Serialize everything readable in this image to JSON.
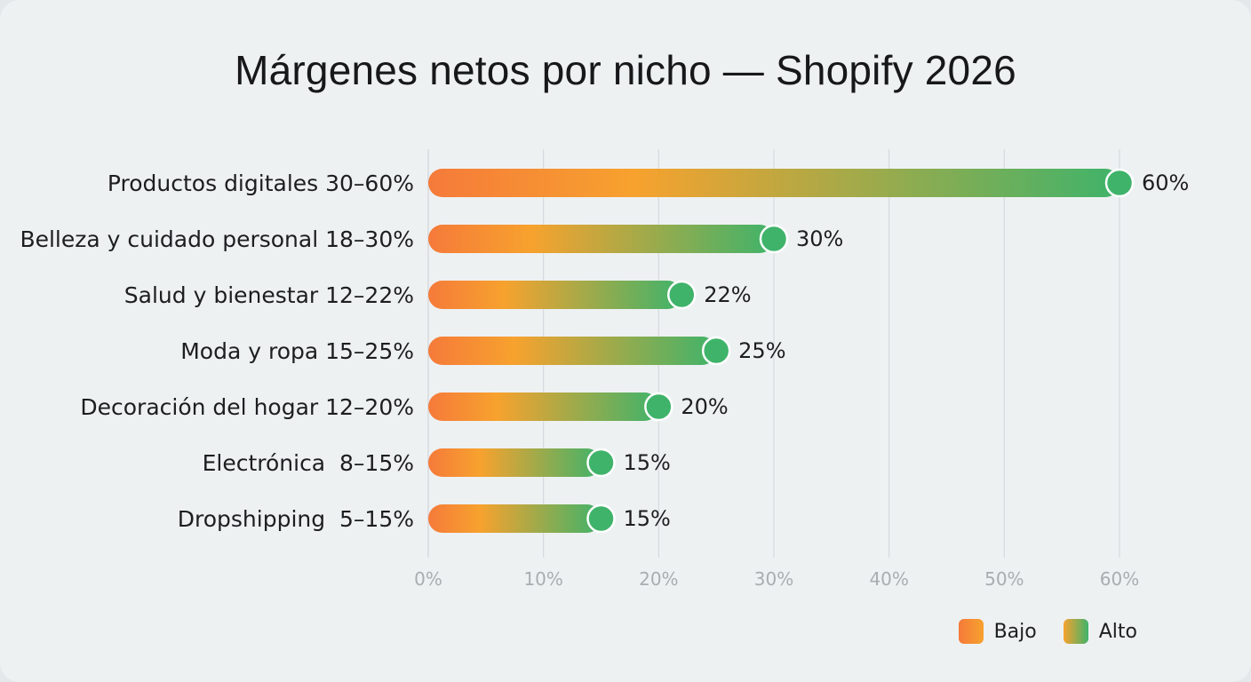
{
  "chart_data": {
    "type": "bar",
    "title": "Márgenes netos por nicho — Shopify 2026",
    "categories": [
      "Productos digitales 30–60%",
      "Belleza y cuidado personal 18–30%",
      "Salud y bienestar 12–22%",
      "Moda y ropa 15–25%",
      "Decoración del hogar 12–20%",
      "Electrónica  8–15%",
      "Dropshipping  5–15%"
    ],
    "values": [
      60,
      30,
      22,
      25,
      20,
      15,
      15
    ],
    "value_labels": [
      "60%",
      "30%",
      "22%",
      "25%",
      "20%",
      "15%",
      "15%"
    ],
    "xlim": [
      0,
      60
    ],
    "xticks": [
      0,
      10,
      20,
      30,
      40,
      50,
      60
    ],
    "xtick_labels": [
      "0%",
      "10%",
      "20%",
      "30%",
      "40%",
      "50%",
      "60%"
    ],
    "grid": true,
    "orientation": "horizontal",
    "legend": {
      "position": "bottom-right",
      "items": [
        {
          "name": "Bajo",
          "color": "#f57a3a"
        },
        {
          "name": "Alto",
          "color": "#3fb36a"
        }
      ]
    },
    "colors": {
      "low": "#f57a3a",
      "mid": "#f7a22e",
      "high": "#3fb36a",
      "grid": "#d7dbde"
    }
  }
}
